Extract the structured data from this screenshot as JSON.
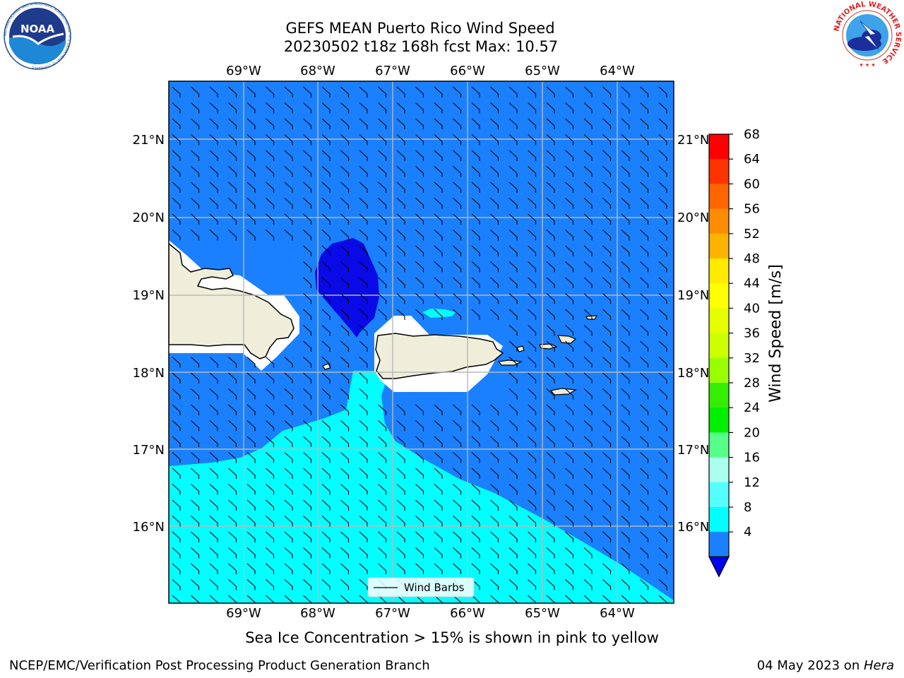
{
  "title": {
    "line1": "GEFS MEAN Puerto Rico Wind Speed",
    "line2": "20230502 t18z 168h fcst   Max: 10.57"
  },
  "subtitle": "Sea Ice Concentration > 15% is shown in pink to yellow",
  "footer": {
    "left": "NCEP/EMC/Verification Post Processing Product Generation Branch",
    "date": "04 May 2023 on ",
    "machine": "Hera"
  },
  "logos": {
    "noaa": {
      "label": "NOAA",
      "ring_text": "NATIONAL OCEANIC AND ATMOSPHERIC ADMINISTRATION · U.S. DEPARTMENT OF COMMERCE"
    },
    "nws": {
      "ring_text": "NATIONAL WEATHER SERVICE"
    }
  },
  "map": {
    "lon_labels": [
      "69°W",
      "68°W",
      "67°W",
      "66°W",
      "65°W",
      "64°W"
    ],
    "lat_labels": [
      "21°N",
      "20°N",
      "19°N",
      "18°N",
      "17°N",
      "16°N"
    ],
    "legend_label": "Wind Barbs",
    "colors": {
      "ocean_4_8": "#1a80ff",
      "ocean_below_4": "#0a0ae6",
      "ocean_8_12": "#00ffff",
      "land": "#efeedb",
      "grid": "#b8b8b8"
    }
  },
  "colorbar": {
    "label": "Wind Speed [m/s]",
    "ticks": [
      "68",
      "64",
      "60",
      "56",
      "52",
      "48",
      "44",
      "40",
      "36",
      "32",
      "28",
      "24",
      "20",
      "16",
      "12",
      "8",
      "4"
    ],
    "bins": [
      {
        "range": "64-68",
        "color": "#ff0000"
      },
      {
        "range": "60-64",
        "color": "#ff3300"
      },
      {
        "range": "56-60",
        "color": "#ff6600"
      },
      {
        "range": "52-56",
        "color": "#ff8c00"
      },
      {
        "range": "48-52",
        "color": "#ffb300"
      },
      {
        "range": "44-48",
        "color": "#ffea00"
      },
      {
        "range": "40-44",
        "color": "#ffff00"
      },
      {
        "range": "36-40",
        "color": "#e6ff00"
      },
      {
        "range": "32-36",
        "color": "#ccff00"
      },
      {
        "range": "28-32",
        "color": "#99ff00"
      },
      {
        "range": "24-28",
        "color": "#33ee00"
      },
      {
        "range": "20-24",
        "color": "#00ee00"
      },
      {
        "range": "16-20",
        "color": "#55ff88"
      },
      {
        "range": "12-16",
        "color": "#aaffee"
      },
      {
        "range": "8-12",
        "color": "#55ffff"
      },
      {
        "range": "4-8",
        "color": "#00ffff"
      },
      {
        "range": "0-4",
        "color": "#1a80ff"
      },
      {
        "range": "<0",
        "color": "#0000ee"
      }
    ]
  }
}
